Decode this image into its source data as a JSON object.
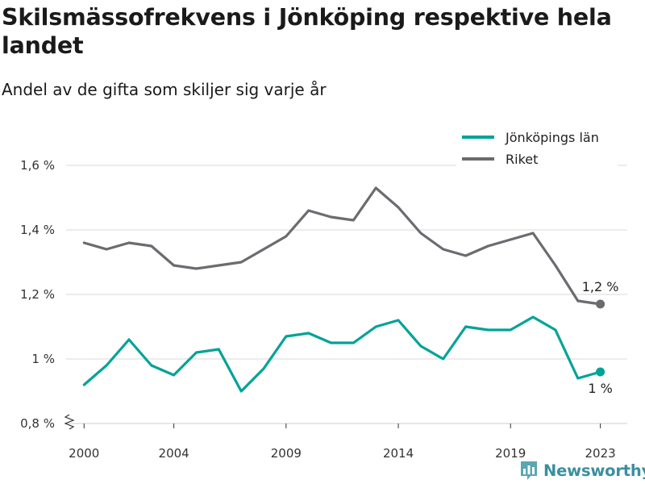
{
  "title": "Skilsmässofrekvens i Jönköping respektive hela landet",
  "subtitle": "Andel av de gifta som skiljer sig varje år",
  "brand": "Newsworthy",
  "colors": {
    "jonkoping": "#00a397",
    "riket": "#6b6b70",
    "grid": "#d8d8d8",
    "brand": "#3a8f9f"
  },
  "chart_data": {
    "type": "line",
    "title": "Skilsmässofrekvens i Jönköping respektive hela landet",
    "subtitle": "Andel av de gifta som skiljer sig varje år",
    "xlabel": "",
    "ylabel": "",
    "x": [
      2000,
      2001,
      2002,
      2003,
      2004,
      2005,
      2006,
      2007,
      2008,
      2009,
      2010,
      2011,
      2012,
      2013,
      2014,
      2015,
      2016,
      2017,
      2018,
      2019,
      2020,
      2021,
      2022,
      2023
    ],
    "x_ticks": [
      "2000",
      "2004",
      "2009",
      "2014",
      "2019",
      "2023"
    ],
    "y_ticks": [
      "0,8 %",
      "1 %",
      "1,2 %",
      "1,4 %",
      "1,6 %"
    ],
    "ylim": [
      0.8,
      1.6
    ],
    "xlim": [
      1999.2,
      2024.2
    ],
    "grid": true,
    "legend": "top-right",
    "series": [
      {
        "name": "Jönköpings län",
        "color": "#00a397",
        "values": [
          0.92,
          0.98,
          1.06,
          0.98,
          0.95,
          1.02,
          1.03,
          0.9,
          0.97,
          1.07,
          1.08,
          1.05,
          1.05,
          1.1,
          1.12,
          1.04,
          1.0,
          1.1,
          1.09,
          1.09,
          1.13,
          1.09,
          0.94,
          0.96
        ],
        "end_label": "1 %"
      },
      {
        "name": "Riket",
        "color": "#6b6b70",
        "values": [
          1.36,
          1.34,
          1.36,
          1.35,
          1.29,
          1.28,
          1.29,
          1.3,
          1.34,
          1.38,
          1.46,
          1.44,
          1.43,
          1.53,
          1.47,
          1.39,
          1.34,
          1.32,
          1.35,
          1.37,
          1.39,
          1.29,
          1.18,
          1.17
        ],
        "end_label": "1,2 %"
      }
    ]
  }
}
